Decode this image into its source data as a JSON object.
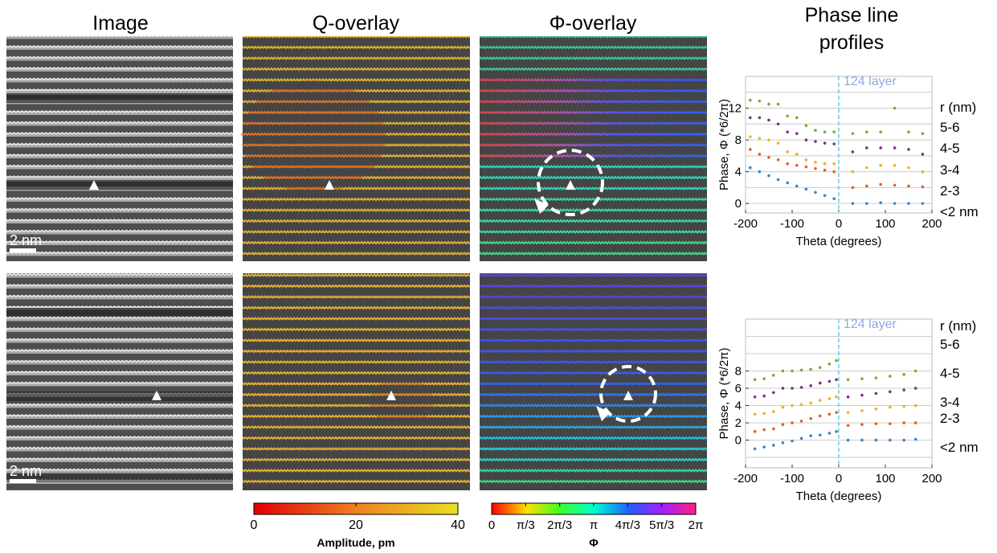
{
  "headers": [
    "Image",
    "Q-overlay",
    "Φ-overlay",
    "Phase line profiles"
  ],
  "scale_bars": [
    "2 nm",
    "2 nm"
  ],
  "colorbars": [
    {
      "label": "Amplitude, pm",
      "lim": [
        0,
        40
      ],
      "ticks": [
        0,
        20,
        40
      ]
    },
    {
      "label": "Φ",
      "lim": [
        0,
        6.2832
      ],
      "ticks": [
        0,
        {
          "value": 1.0472,
          "label": "π/3"
        },
        {
          "value": 2.0944,
          "label": "2π/3"
        },
        {
          "value": 3.1416,
          "label": "π"
        },
        {
          "value": 4.1888,
          "label": "4π/3"
        },
        {
          "value": 5.236,
          "label": "5π/3"
        },
        {
          "value": 6.2832,
          "label": "2π"
        }
      ]
    }
  ],
  "chart_data": [
    {
      "type": "scatter",
      "xlabel": "Theta (degrees)",
      "ylabel": "Phase, Φ (*6/2π)",
      "annotation": "124 layer",
      "vline": 0,
      "legend_title": "r (nm)",
      "xlim": [
        -200,
        200
      ],
      "xticks": [
        -200,
        -100,
        0,
        100,
        200
      ],
      "ylim": [
        -1.2,
        16
      ],
      "yticks": [
        0,
        4,
        8,
        12
      ],
      "ygrid": [
        0,
        2,
        4,
        6,
        8,
        10,
        12,
        14
      ],
      "x": [
        -190,
        -170,
        -150,
        -130,
        -110,
        -90,
        -70,
        -50,
        -30,
        -10,
        30,
        60,
        90,
        120,
        150,
        180
      ],
      "series": [
        {
          "name": "<2 nm",
          "color": "#3a86c8",
          "values": [
            4.5,
            4,
            3.5,
            3,
            2.6,
            2.2,
            1.8,
            1.4,
            1,
            0.6,
            0,
            0,
            0.1,
            0,
            0,
            0
          ]
        },
        {
          "name": "2-3",
          "color": "#e0602a",
          "values": [
            6.8,
            6.2,
            5.8,
            5.5,
            5,
            4.8,
            4.6,
            4.4,
            4.2,
            4,
            2,
            2.2,
            2.4,
            2.3,
            2.2,
            2.1
          ]
        },
        {
          "name": "3-4",
          "color": "#edb120",
          "values": [
            8.4,
            8.2,
            8,
            7.6,
            6.5,
            6.2,
            5.5,
            5.2,
            5,
            5,
            4,
            4.5,
            4.8,
            4.8,
            4.5,
            4
          ]
        },
        {
          "name": "4-5",
          "color": "#7e2f8e",
          "values": [
            10.8,
            10.8,
            10.5,
            10,
            9,
            8.8,
            8,
            7.8,
            7.6,
            7.5,
            6.5,
            7,
            7,
            7,
            6.8,
            6.2
          ]
        },
        {
          "name": "5-6",
          "color": "#77ac30",
          "values": [
            13,
            12.9,
            12.5,
            12.5,
            11,
            10.8,
            9.8,
            9.2,
            9,
            9,
            8.8,
            9,
            9,
            12,
            9,
            8.8
          ]
        }
      ]
    },
    {
      "type": "scatter",
      "xlabel": "Theta (degrees)",
      "ylabel": "Phase, Φ (*6/2π)",
      "annotation": "124 layer",
      "vline": 0,
      "legend_title": "r (nm)",
      "xlim": [
        -200,
        200
      ],
      "xticks": [
        -200,
        -100,
        0,
        100,
        200
      ],
      "ylim": [
        -3.2,
        14
      ],
      "yticks": [
        0,
        2,
        4,
        6,
        8
      ],
      "ygrid": [
        -2,
        0,
        2,
        4,
        6,
        8,
        10,
        12
      ],
      "x": [
        -180,
        -160,
        -140,
        -120,
        -100,
        -80,
        -60,
        -40,
        -20,
        -5,
        20,
        50,
        80,
        110,
        140,
        165
      ],
      "series": [
        {
          "name": "<2 nm",
          "color": "#3a86c8",
          "values": [
            -1,
            -0.8,
            -0.6,
            -0.3,
            -0.1,
            0.2,
            0.5,
            0.6,
            0.8,
            1,
            0,
            0,
            0,
            0,
            0,
            0.1
          ]
        },
        {
          "name": "2-3",
          "color": "#e0602a",
          "values": [
            1,
            1.2,
            1.3,
            1.8,
            2,
            2.2,
            2.5,
            2.8,
            3,
            3.2,
            1.7,
            1.8,
            1.9,
            1.9,
            2,
            2
          ]
        },
        {
          "name": "3-4",
          "color": "#edb120",
          "values": [
            3,
            3.1,
            3.3,
            3.8,
            4,
            4.1,
            4.3,
            4.6,
            4.8,
            5,
            3.2,
            3.4,
            3.6,
            3.8,
            3.9,
            4
          ]
        },
        {
          "name": "4-5",
          "color": "#7e2f8e",
          "values": [
            5,
            5.1,
            5.5,
            6,
            6,
            6.1,
            6.3,
            6.6,
            6.8,
            7,
            5,
            5.2,
            5.4,
            5.6,
            5.8,
            6
          ]
        },
        {
          "name": "5-6",
          "color": "#77ac30",
          "values": [
            7,
            7.1,
            7.5,
            8,
            8,
            8.1,
            8.2,
            8.4,
            8.8,
            9.2,
            7,
            7.1,
            7.2,
            7.4,
            7.6,
            8
          ]
        }
      ]
    }
  ]
}
